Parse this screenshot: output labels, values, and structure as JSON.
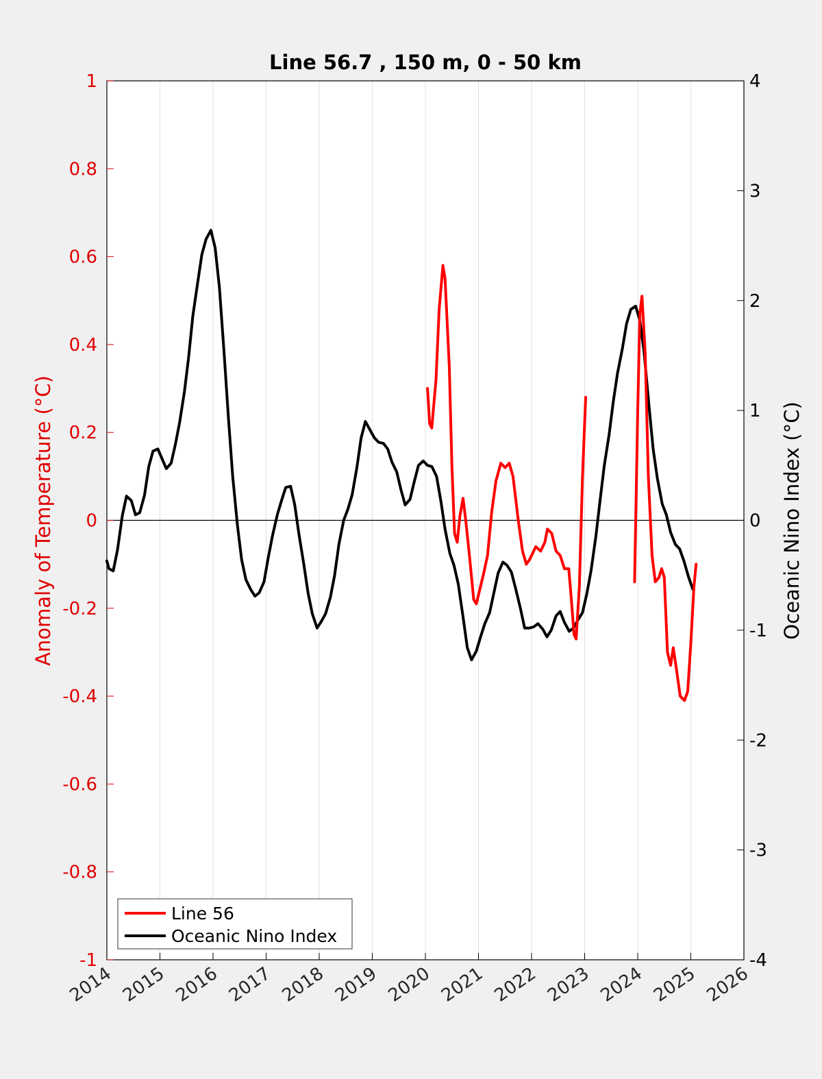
{
  "chart_data": {
    "type": "line",
    "title": "Line 56.7 , 150 m, 0 - 50 km",
    "xlabel": "",
    "ylabel_left": "Anomaly of Temperature (°C)",
    "ylabel_right": "Oceanic Nino Index (°C)",
    "xlim": [
      2014,
      2026
    ],
    "ylim_left": [
      -1,
      1
    ],
    "ylim_right": [
      -4,
      4
    ],
    "x_ticks": [
      "2014",
      "2015",
      "2016",
      "2017",
      "2018",
      "2019",
      "2020",
      "2021",
      "2022",
      "2023",
      "2024",
      "2025",
      "2026"
    ],
    "y_ticks_left": [
      "-1",
      "-0.8",
      "-0.6",
      "-0.4",
      "-0.2",
      "0",
      "0.2",
      "0.4",
      "0.6",
      "0.8",
      "1"
    ],
    "y_ticks_right": [
      "-4",
      "-3",
      "-2",
      "-1",
      "0",
      "1",
      "2",
      "3",
      "4"
    ],
    "grid": "vertical",
    "legend_position": "bottom-left",
    "colors": {
      "line56": "#ff0000",
      "oni": "#000000",
      "left_axis": "#e00000",
      "right_axis": "#000000",
      "grid": "#e0e0e0"
    },
    "series": [
      {
        "name": "Line 56",
        "axis": "left",
        "color": "#ff0000",
        "segments": [
          [
            [
              2020.04,
              0.3
            ],
            [
              2020.08,
              0.22
            ],
            [
              2020.12,
              0.21
            ],
            [
              2020.2,
              0.32
            ],
            [
              2020.26,
              0.48
            ],
            [
              2020.33,
              0.58
            ],
            [
              2020.37,
              0.55
            ],
            [
              2020.45,
              0.35
            ],
            [
              2020.5,
              0.12
            ],
            [
              2020.55,
              -0.03
            ],
            [
              2020.6,
              -0.05
            ],
            [
              2020.65,
              0.01
            ],
            [
              2020.71,
              0.05
            ],
            [
              2020.76,
              0.0
            ],
            [
              2020.83,
              -0.08
            ],
            [
              2020.91,
              -0.18
            ],
            [
              2020.96,
              -0.19
            ],
            [
              2021.04,
              -0.15
            ],
            [
              2021.1,
              -0.12
            ],
            [
              2021.17,
              -0.08
            ],
            [
              2021.25,
              0.02
            ],
            [
              2021.33,
              0.09
            ],
            [
              2021.42,
              0.13
            ],
            [
              2021.5,
              0.12
            ],
            [
              2021.58,
              0.13
            ],
            [
              2021.65,
              0.1
            ],
            [
              2021.75,
              0.0
            ],
            [
              2021.83,
              -0.07
            ],
            [
              2021.9,
              -0.1
            ],
            [
              2021.96,
              -0.09
            ],
            [
              2022.08,
              -0.06
            ],
            [
              2022.17,
              -0.07
            ],
            [
              2022.25,
              -0.05
            ],
            [
              2022.3,
              -0.02
            ],
            [
              2022.38,
              -0.03
            ],
            [
              2022.46,
              -0.07
            ],
            [
              2022.54,
              -0.08
            ],
            [
              2022.62,
              -0.11
            ],
            [
              2022.7,
              -0.11
            ],
            [
              2022.75,
              -0.18
            ],
            [
              2022.8,
              -0.26
            ],
            [
              2022.84,
              -0.27
            ],
            [
              2022.9,
              -0.15
            ],
            [
              2022.96,
              0.1
            ],
            [
              2023.02,
              0.28
            ]
          ],
          [
            [
              2023.94,
              -0.14
            ],
            [
              2024.0,
              0.25
            ],
            [
              2024.04,
              0.47
            ],
            [
              2024.08,
              0.51
            ],
            [
              2024.14,
              0.38
            ],
            [
              2024.2,
              0.1
            ],
            [
              2024.27,
              -0.08
            ],
            [
              2024.33,
              -0.14
            ],
            [
              2024.4,
              -0.13
            ],
            [
              2024.45,
              -0.11
            ],
            [
              2024.5,
              -0.13
            ],
            [
              2024.56,
              -0.3
            ],
            [
              2024.62,
              -0.33
            ],
            [
              2024.67,
              -0.29
            ],
            [
              2024.73,
              -0.34
            ],
            [
              2024.8,
              -0.4
            ],
            [
              2024.88,
              -0.41
            ],
            [
              2024.94,
              -0.39
            ],
            [
              2025.0,
              -0.28
            ],
            [
              2025.06,
              -0.15
            ],
            [
              2025.1,
              -0.1
            ]
          ]
        ]
      },
      {
        "name": "Oceanic Nino Index",
        "axis": "right",
        "color": "#000000",
        "points": [
          [
            2014.0,
            -0.37
          ],
          [
            2014.04,
            -0.44
          ],
          [
            2014.12,
            -0.46
          ],
          [
            2014.2,
            -0.27
          ],
          [
            2014.29,
            0.04
          ],
          [
            2014.37,
            0.22
          ],
          [
            2014.46,
            0.18
          ],
          [
            2014.54,
            0.05
          ],
          [
            2014.62,
            0.07
          ],
          [
            2014.71,
            0.23
          ],
          [
            2014.79,
            0.49
          ],
          [
            2014.87,
            0.63
          ],
          [
            2014.96,
            0.65
          ],
          [
            2015.04,
            0.56
          ],
          [
            2015.12,
            0.47
          ],
          [
            2015.21,
            0.52
          ],
          [
            2015.29,
            0.69
          ],
          [
            2015.37,
            0.89
          ],
          [
            2015.46,
            1.17
          ],
          [
            2015.54,
            1.48
          ],
          [
            2015.62,
            1.86
          ],
          [
            2015.71,
            2.16
          ],
          [
            2015.79,
            2.42
          ],
          [
            2015.87,
            2.56
          ],
          [
            2015.96,
            2.64
          ],
          [
            2016.04,
            2.48
          ],
          [
            2016.12,
            2.12
          ],
          [
            2016.21,
            1.51
          ],
          [
            2016.29,
            0.93
          ],
          [
            2016.37,
            0.4
          ],
          [
            2016.46,
            -0.05
          ],
          [
            2016.54,
            -0.36
          ],
          [
            2016.62,
            -0.54
          ],
          [
            2016.71,
            -0.63
          ],
          [
            2016.79,
            -0.69
          ],
          [
            2016.87,
            -0.66
          ],
          [
            2016.96,
            -0.56
          ],
          [
            2017.04,
            -0.34
          ],
          [
            2017.12,
            -0.14
          ],
          [
            2017.21,
            0.05
          ],
          [
            2017.29,
            0.18
          ],
          [
            2017.37,
            0.3
          ],
          [
            2017.46,
            0.31
          ],
          [
            2017.54,
            0.14
          ],
          [
            2017.62,
            -0.13
          ],
          [
            2017.71,
            -0.4
          ],
          [
            2017.79,
            -0.66
          ],
          [
            2017.87,
            -0.85
          ],
          [
            2017.96,
            -0.98
          ],
          [
            2018.04,
            -0.92
          ],
          [
            2018.12,
            -0.85
          ],
          [
            2018.21,
            -0.7
          ],
          [
            2018.29,
            -0.5
          ],
          [
            2018.37,
            -0.22
          ],
          [
            2018.46,
            0.0
          ],
          [
            2018.54,
            0.1
          ],
          [
            2018.62,
            0.23
          ],
          [
            2018.71,
            0.48
          ],
          [
            2018.79,
            0.75
          ],
          [
            2018.87,
            0.9
          ],
          [
            2018.96,
            0.82
          ],
          [
            2019.04,
            0.75
          ],
          [
            2019.12,
            0.71
          ],
          [
            2019.21,
            0.7
          ],
          [
            2019.29,
            0.65
          ],
          [
            2019.37,
            0.53
          ],
          [
            2019.46,
            0.44
          ],
          [
            2019.54,
            0.28
          ],
          [
            2019.62,
            0.14
          ],
          [
            2019.71,
            0.19
          ],
          [
            2019.79,
            0.35
          ],
          [
            2019.87,
            0.5
          ],
          [
            2019.96,
            0.54
          ],
          [
            2020.04,
            0.5
          ],
          [
            2020.12,
            0.49
          ],
          [
            2020.21,
            0.4
          ],
          [
            2020.29,
            0.18
          ],
          [
            2020.37,
            -0.08
          ],
          [
            2020.46,
            -0.3
          ],
          [
            2020.54,
            -0.41
          ],
          [
            2020.62,
            -0.58
          ],
          [
            2020.71,
            -0.88
          ],
          [
            2020.79,
            -1.16
          ],
          [
            2020.87,
            -1.27
          ],
          [
            2020.96,
            -1.19
          ],
          [
            2021.04,
            -1.06
          ],
          [
            2021.12,
            -0.94
          ],
          [
            2021.21,
            -0.84
          ],
          [
            2021.29,
            -0.66
          ],
          [
            2021.37,
            -0.48
          ],
          [
            2021.46,
            -0.38
          ],
          [
            2021.54,
            -0.41
          ],
          [
            2021.62,
            -0.47
          ],
          [
            2021.71,
            -0.64
          ],
          [
            2021.79,
            -0.8
          ],
          [
            2021.87,
            -0.98
          ],
          [
            2021.96,
            -0.98
          ],
          [
            2022.04,
            -0.97
          ],
          [
            2022.12,
            -0.94
          ],
          [
            2022.21,
            -0.99
          ],
          [
            2022.29,
            -1.06
          ],
          [
            2022.37,
            -1.0
          ],
          [
            2022.46,
            -0.87
          ],
          [
            2022.54,
            -0.83
          ],
          [
            2022.62,
            -0.93
          ],
          [
            2022.71,
            -1.01
          ],
          [
            2022.79,
            -0.98
          ],
          [
            2022.87,
            -0.91
          ],
          [
            2022.96,
            -0.84
          ],
          [
            2023.04,
            -0.67
          ],
          [
            2023.12,
            -0.46
          ],
          [
            2023.21,
            -0.15
          ],
          [
            2023.29,
            0.18
          ],
          [
            2023.37,
            0.5
          ],
          [
            2023.46,
            0.78
          ],
          [
            2023.54,
            1.08
          ],
          [
            2023.62,
            1.34
          ],
          [
            2023.71,
            1.56
          ],
          [
            2023.79,
            1.79
          ],
          [
            2023.87,
            1.92
          ],
          [
            2023.96,
            1.95
          ],
          [
            2024.04,
            1.82
          ],
          [
            2024.12,
            1.53
          ],
          [
            2024.21,
            1.05
          ],
          [
            2024.29,
            0.65
          ],
          [
            2024.37,
            0.38
          ],
          [
            2024.46,
            0.15
          ],
          [
            2024.54,
            0.05
          ],
          [
            2024.62,
            -0.11
          ],
          [
            2024.71,
            -0.22
          ],
          [
            2024.79,
            -0.26
          ],
          [
            2024.87,
            -0.37
          ],
          [
            2024.96,
            -0.52
          ],
          [
            2025.04,
            -0.63
          ]
        ]
      }
    ]
  }
}
